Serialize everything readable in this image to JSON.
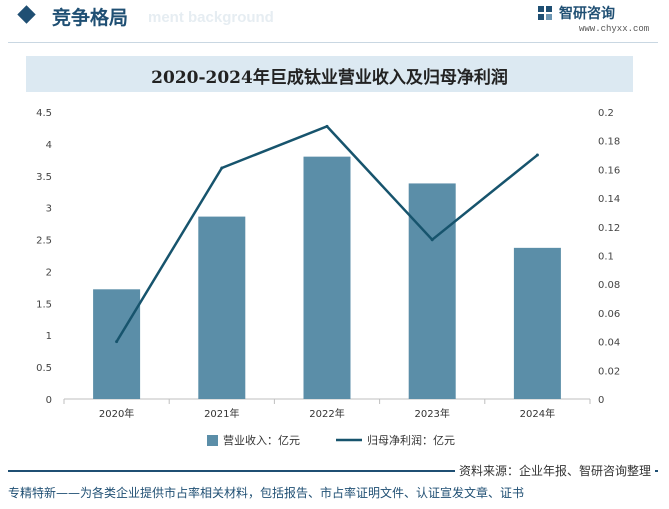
{
  "header": {
    "section_title": "竞争格局",
    "section_subtitle": "ment background",
    "brand_name": "智研咨询",
    "brand_url": "www.chyxx.com"
  },
  "chart_data": {
    "type": "bar+line",
    "title": "2020-2024年巨成钛业营业收入及归母净利润",
    "categories": [
      "2020年",
      "2021年",
      "2022年",
      "2023年",
      "2024年"
    ],
    "series": [
      {
        "name": "营业收入：亿元",
        "type": "bar",
        "axis": "left",
        "values": [
          1.72,
          2.86,
          3.8,
          3.38,
          2.37
        ]
      },
      {
        "name": "归母净利润：亿元",
        "type": "line",
        "axis": "right",
        "values": [
          0.04,
          0.161,
          0.19,
          0.111,
          0.17
        ]
      }
    ],
    "y_left": {
      "min": 0,
      "max": 4.5,
      "ticks": [
        "0",
        "0.5",
        "1",
        "1.5",
        "2",
        "2.5",
        "3",
        "3.5",
        "4",
        "4.5"
      ]
    },
    "y_right": {
      "min": 0,
      "max": 0.2,
      "ticks": [
        "0",
        "0.02",
        "0.04",
        "0.06",
        "0.08",
        "0.1",
        "0.12",
        "0.14",
        "0.16",
        "0.18",
        "0.2"
      ]
    },
    "grid": false,
    "legend_position": "bottom",
    "colors": {
      "bar": "#5b8ea8",
      "line": "#17546d"
    }
  },
  "footer": {
    "source": "资料来源：企业年报、智研咨询整理",
    "tagline": "专精特新——为各类企业提供市占率相关材料，包括报告、市占率证明文件、认证宣发文章、证书"
  }
}
